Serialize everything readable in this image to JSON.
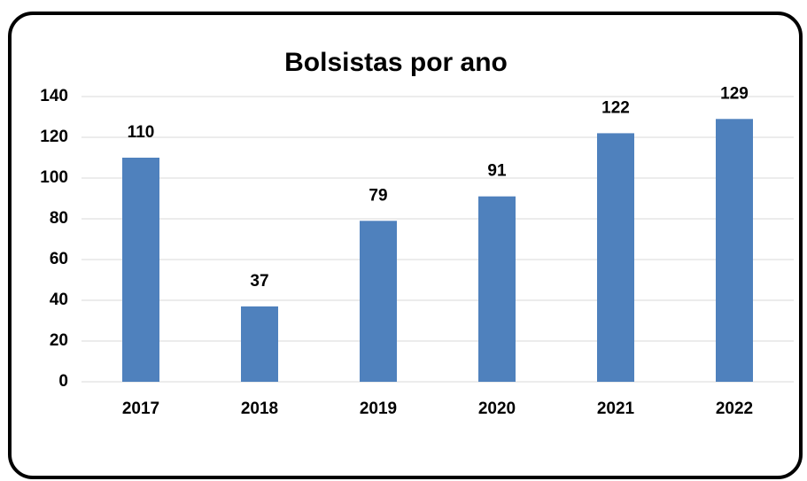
{
  "chart_data": {
    "type": "bar",
    "title": "Bolsistas por ano",
    "categories": [
      "2017",
      "2018",
      "2019",
      "2020",
      "2021",
      "2022"
    ],
    "values": [
      110,
      37,
      79,
      91,
      122,
      129
    ],
    "color": "#4f81bd",
    "ylim": [
      0,
      140
    ],
    "yticks": [
      0,
      20,
      40,
      60,
      80,
      100,
      120,
      140
    ],
    "grid": true
  }
}
